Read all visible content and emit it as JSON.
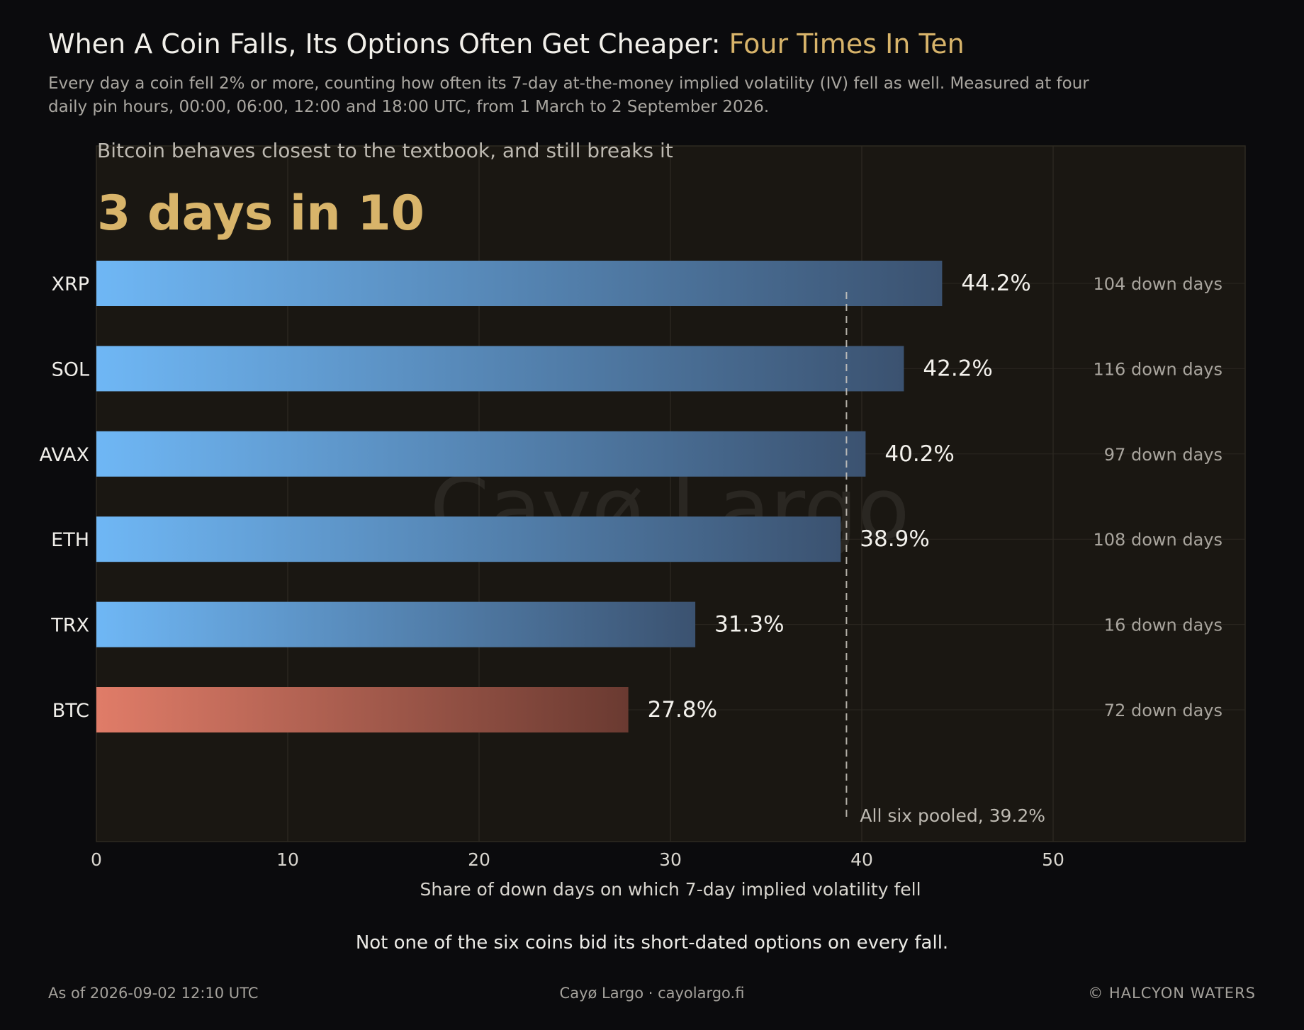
{
  "header": {
    "title_main": "When A Coin Falls, Its Options Often Get Cheaper: ",
    "title_accent": "Four Times In Ten",
    "subtitle": "Every day a coin fell 2% or more, counting how often its 7-day at-the-money implied volatility (IV) fell as well. Measured at four daily pin hours, 00:00, 06:00, 12:00 and 18:00 UTC, from 1 March to 2 September 2026."
  },
  "chart_data": {
    "type": "bar",
    "orientation": "horizontal",
    "panel_caption": "Bitcoin behaves closest to the textbook, and still breaks it",
    "highlight": "3 days in 10",
    "categories": [
      "XRP",
      "SOL",
      "AVAX",
      "ETH",
      "TRX",
      "BTC"
    ],
    "values": [
      44.2,
      42.2,
      40.2,
      38.9,
      31.3,
      27.8
    ],
    "value_labels": [
      "44.2%",
      "42.2%",
      "40.2%",
      "38.9%",
      "31.3%",
      "27.8%"
    ],
    "side_labels": [
      "104 down days",
      "116 down days",
      "97 down days",
      "108 down days",
      "16 down days",
      "72 down days"
    ],
    "highlight_category": "BTC",
    "reference_line": {
      "value": 39.2,
      "label": "All six pooled, 39.2%"
    },
    "xlabel": "Share of down days on which 7-day implied volatility fell",
    "xlim": [
      0,
      60
    ],
    "xticks": [
      0,
      10,
      20,
      30,
      40,
      50
    ],
    "grid": true,
    "watermark": "Cayø Largo",
    "colors": {
      "bar_start": "#6fb7f5",
      "bar_end": "#3b5270",
      "highlight_start": "#e07c68",
      "highlight_end": "#6a3a31",
      "accent": "#d8b46a"
    }
  },
  "footnote": "Not one of the six coins bid its short-dated options on every fall.",
  "footer": {
    "left": "As of 2026-09-02 12:10 UTC",
    "center": "Cayø Largo  ·  cayolargo.fi",
    "right": "© HALCYON WATERS"
  }
}
